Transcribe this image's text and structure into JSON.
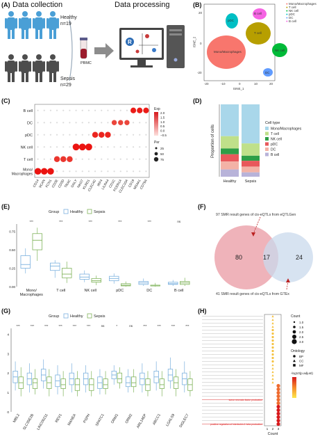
{
  "panels": {
    "A": {
      "label": "(A)",
      "collection_title": "Data collection",
      "processing_title": "Data processing",
      "healthy_label": "Healthy",
      "healthy_n": "n=19",
      "sepsis_label": "Sepsis",
      "sepsis_n": "n=29",
      "pbmc_label": "PBMC"
    },
    "B": {
      "label": "(B)",
      "legend": [
        "Mono/Macrophages",
        "T cell",
        "NK cell",
        "pDC",
        "DC",
        "B cell"
      ],
      "xlabel": "tSNE_1",
      "ylabel": "tSNE_2",
      "xticks": [
        "-20",
        "-10",
        "0",
        "10",
        "20"
      ],
      "yticks": [
        "-20",
        "0",
        "20"
      ],
      "cluster_labels": [
        "B cell",
        "pDC",
        "T cell",
        "Mono/Macrophages",
        "NK cell",
        "DC"
      ]
    },
    "C": {
      "label": "(C)"
    },
    "D": {
      "label": "(D)"
    },
    "E": {
      "label": "(E)"
    },
    "F": {
      "label": "(F)",
      "top_text": "97 SMR result genes of cis-eQTLs from eQTLGen",
      "bottom_text": "41 SMR result genes of cis-eQTLs from GTEx",
      "left_count": "80",
      "overlap_count": "17",
      "right_count": "24"
    },
    "G": {
      "label": "(G)"
    },
    "H": {
      "label": "(H)"
    }
  },
  "colors": {
    "mono": "#f8766d",
    "tcell": "#b79f00",
    "nk": "#00ba38",
    "pdc": "#00bfc4",
    "dc": "#619cff",
    "bcell": "#f564e3",
    "healthy": "#7ab0de",
    "sepsis": "#7fb35a",
    "venn_left": "#e99aa3",
    "venn_right": "#c9d9ec"
  },
  "chart_data": [
    {
      "id": "C",
      "type": "scatter",
      "ylabel_categories": [
        "B cell",
        "DC",
        "pDC",
        "NK cell",
        "T cell",
        "Mono/\nMacrophages"
      ],
      "categories": [
        "B cell",
        "DC",
        "pDC",
        "NK cell",
        "T cell",
        "Mono/ Macrophages"
      ],
      "genes": [
        "CD14",
        "VCAN",
        "FCN1",
        "CD3E",
        "CD3D",
        "TRAC",
        "GNLY",
        "NKG7",
        "KLRD1",
        "CLEC4C",
        "IRF4",
        "LILRA4",
        "CD1C",
        "FCER1A",
        "CLEC10A",
        "CD19",
        "MS4A1",
        "CD79A"
      ],
      "legend_exp_title": "Exp",
      "exp_ticks": [
        "2.0",
        "1.5",
        "1.0",
        "0.5",
        "0.0",
        "−0.5"
      ],
      "legend_per_title": "Per",
      "per_ticks": [
        "25",
        "50",
        "75"
      ],
      "dots": [
        {
          "row": 5,
          "genes": [
            0,
            1,
            2
          ],
          "size": 75,
          "exp": 2.0
        },
        {
          "row": 4,
          "genes": [
            3,
            4,
            5
          ],
          "size": 60,
          "exp": 1.6
        },
        {
          "row": 3,
          "genes": [
            6,
            7,
            8
          ],
          "size": 80,
          "exp": 2.0
        },
        {
          "row": 2,
          "genes": [
            9,
            10,
            11
          ],
          "size": 60,
          "exp": 1.8
        },
        {
          "row": 1,
          "genes": [
            12,
            13,
            14
          ],
          "size": 45,
          "exp": 1.4
        },
        {
          "row": 0,
          "genes": [
            15,
            16,
            17
          ],
          "size": 55,
          "exp": 1.9
        }
      ]
    },
    {
      "id": "D",
      "type": "bar",
      "categories": [
        "Healthy",
        "Sepsis"
      ],
      "ylabel": "Proportion of cells",
      "legend_title": "Cell type",
      "series": [
        {
          "name": "Mono/Macrophages",
          "values": [
            0.44,
            0.54
          ]
        },
        {
          "name": "T cell",
          "values": [
            0.17,
            0.17
          ]
        },
        {
          "name": "NK cell",
          "values": [
            0.08,
            0.07
          ]
        },
        {
          "name": "pDC",
          "values": [
            0.1,
            0.08
          ]
        },
        {
          "name": "DC",
          "values": [
            0.11,
            0.08
          ]
        },
        {
          "name": "B cell",
          "values": [
            0.1,
            0.06
          ]
        }
      ]
    },
    {
      "id": "E",
      "type": "box",
      "categories": [
        "Mono/\nMacrophages",
        "T cell",
        "NK cell",
        "pDC",
        "DC",
        "B cell"
      ],
      "legend_title": "Group",
      "legend": [
        "Healthy",
        "Sepsis"
      ],
      "significance": [
        "***",
        "***",
        "***",
        "***",
        "***",
        "ns"
      ],
      "healthy": [
        [
          0.18,
          0.25,
          0.3,
          0.42,
          0.52
        ],
        [
          0.12,
          0.22,
          0.28,
          0.32,
          0.36
        ],
        [
          0.06,
          0.1,
          0.13,
          0.17,
          0.22
        ],
        [
          0.04,
          0.08,
          0.11,
          0.14,
          0.18
        ],
        [
          0.01,
          0.03,
          0.05,
          0.07,
          0.11
        ],
        [
          0.01,
          0.03,
          0.04,
          0.06,
          0.09
        ]
      ],
      "sepsis": [
        [
          0.35,
          0.5,
          0.63,
          0.72,
          0.8
        ],
        [
          0.05,
          0.12,
          0.17,
          0.25,
          0.34
        ],
        [
          0.02,
          0.06,
          0.08,
          0.11,
          0.15
        ],
        [
          0.0,
          0.01,
          0.02,
          0.04,
          0.07
        ],
        [
          0.0,
          0.01,
          0.01,
          0.02,
          0.05
        ],
        [
          0.01,
          0.03,
          0.05,
          0.07,
          0.12
        ]
      ],
      "ylim": [
        0.0,
        0.85
      ]
    },
    {
      "id": "G",
      "type": "box",
      "categories": [
        "MBL2",
        "SLC35E2B",
        "LINC00211",
        "REV1",
        "MANEA",
        "PSPH",
        "SPATC1",
        "ORM1",
        "ORM2",
        "ARL14EP",
        "ABCC1",
        "LGALS9",
        "SIGLEC7"
      ],
      "legend_title": "Group",
      "legend": [
        "Healthy",
        "Sepsis"
      ],
      "significance": [
        "***",
        "***",
        "***",
        "***",
        "***",
        "***",
        "ns",
        "*",
        "ns",
        "***",
        "***",
        "***",
        "***"
      ],
      "yticks": [
        "0",
        "1",
        "2",
        "3",
        "4"
      ],
      "ylim": [
        0,
        4.3
      ],
      "healthy": [
        [
          1.1,
          1.5,
          1.8,
          2.1,
          2.6
        ],
        [
          1.0,
          1.4,
          1.7,
          2.0,
          2.5
        ],
        [
          1.2,
          1.6,
          1.9,
          2.2,
          2.7
        ],
        [
          0.9,
          1.3,
          1.6,
          1.9,
          2.4
        ],
        [
          1.0,
          1.4,
          1.7,
          2.0,
          2.5
        ],
        [
          1.0,
          1.4,
          1.7,
          2.0,
          2.4
        ],
        [
          0.9,
          1.2,
          1.5,
          1.8,
          2.2
        ],
        [
          1.4,
          1.7,
          1.9,
          2.1,
          2.4
        ],
        [
          1.0,
          1.3,
          1.5,
          1.8,
          2.2
        ],
        [
          1.0,
          1.4,
          1.7,
          2.0,
          2.5
        ],
        [
          1.1,
          1.5,
          1.8,
          2.1,
          2.6
        ],
        [
          1.2,
          1.6,
          1.9,
          2.2,
          2.8
        ],
        [
          1.0,
          1.4,
          1.7,
          2.0,
          2.6
        ]
      ],
      "sepsis": [
        [
          0.8,
          1.2,
          1.5,
          1.8,
          2.3
        ],
        [
          0.9,
          1.2,
          1.5,
          1.7,
          2.2
        ],
        [
          0.8,
          1.2,
          1.5,
          1.8,
          2.2
        ],
        [
          0.8,
          1.2,
          1.4,
          1.7,
          2.1
        ],
        [
          0.8,
          1.1,
          1.4,
          1.7,
          2.1
        ],
        [
          0.8,
          1.1,
          1.4,
          1.7,
          2.1
        ],
        [
          0.9,
          1.2,
          1.4,
          1.7,
          2.1
        ],
        [
          1.2,
          1.5,
          1.7,
          2.0,
          2.3
        ],
        [
          1.0,
          1.3,
          1.5,
          1.8,
          2.2
        ],
        [
          0.8,
          1.1,
          1.4,
          1.7,
          2.1
        ],
        [
          0.8,
          1.2,
          1.4,
          1.7,
          2.1
        ],
        [
          0.8,
          1.2,
          1.5,
          1.8,
          2.2
        ],
        [
          0.8,
          1.1,
          1.4,
          1.7,
          2.1
        ]
      ]
    },
    {
      "id": "H",
      "type": "scatter",
      "categories": [
        "1",
        "2",
        "3"
      ],
      "xlabel": "Count",
      "legend_count_title": "Count",
      "count_ticks": [
        "1.0",
        "1.5",
        "2.0",
        "2.5",
        "3.0"
      ],
      "legend_ontology_title": "Ontology",
      "ontology": [
        "BP",
        "CC",
        "MF"
      ],
      "legend_color_title": "-log10(p.adjust)",
      "highlighted_terms": [
        "tumor necrosis factor production",
        "positive regulation of interleukin-1 beta production"
      ],
      "rows": 32
    }
  ]
}
